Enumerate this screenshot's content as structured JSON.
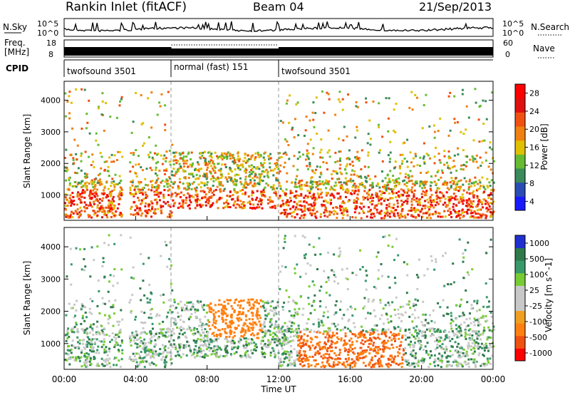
{
  "header": {
    "station": "Rankin Inlet (fitACF)",
    "beam": "Beam 04",
    "date": "21/Sep/2013"
  },
  "noise_panel": {
    "left_label": "N.Sky",
    "right_label": "N.Search",
    "left_ticks": [
      "10^5",
      "10^0"
    ],
    "right_ticks": [
      "10^5",
      "10^0"
    ]
  },
  "freq_panel": {
    "left_label_1": "Freq.",
    "left_label_2": "[MHz]",
    "left_ticks": [
      "18",
      "8"
    ],
    "right_ticks": [
      "60",
      "0"
    ],
    "right_label": "Nave"
  },
  "cpid_panel": {
    "label": "CPID",
    "segments": [
      {
        "name": "twofsound 3501",
        "start_hour": 0,
        "end_hour": 6
      },
      {
        "name": "normal (fast) 151",
        "start_hour": 6,
        "end_hour": 12
      },
      {
        "name": "twofsound 3501",
        "start_hour": 12,
        "end_hour": 24
      }
    ]
  },
  "colors": {
    "power": [
      "#1a1aff",
      "#2a4db3",
      "#3a8a5a",
      "#66bb33",
      "#e0c000",
      "#f08010",
      "#f05010",
      "#e01010",
      "#ff0000"
    ],
    "velocity": [
      "#2030d0",
      "#2f7a4a",
      "#38996a",
      "#77cc33",
      "#c8c8c8",
      "#c8c8c8",
      "#f0a020",
      "#ff8010",
      "#f05010",
      "#ff0000"
    ]
  },
  "chart_data": {
    "type": "heatmap",
    "xlabel": "Time UT",
    "x_ticks": [
      "00:00",
      "04:00",
      "08:00",
      "12:00",
      "16:00",
      "20:00",
      "00:00"
    ],
    "xlim_hours": [
      0,
      24
    ],
    "ylim_km": [
      200,
      4600
    ],
    "y_ticks": [
      "1000",
      "2000",
      "3000",
      "4000"
    ],
    "panels": [
      {
        "name": "power",
        "ylabel": "Slant Range [km]",
        "colorbar_label": "Power [dB]",
        "colorbar_ticks": [
          "4",
          "8",
          "12",
          "16",
          "20",
          "24",
          "28"
        ],
        "scale_min": 0,
        "scale_max": 32
      },
      {
        "name": "velocity",
        "ylabel": "Slant Range [km]",
        "colorbar_label": "Velocity [m s^-1]",
        "colorbar_ticks": [
          "1000",
          "500",
          "100",
          "25",
          "-25",
          "-100",
          "-500",
          "-1000"
        ]
      }
    ]
  }
}
